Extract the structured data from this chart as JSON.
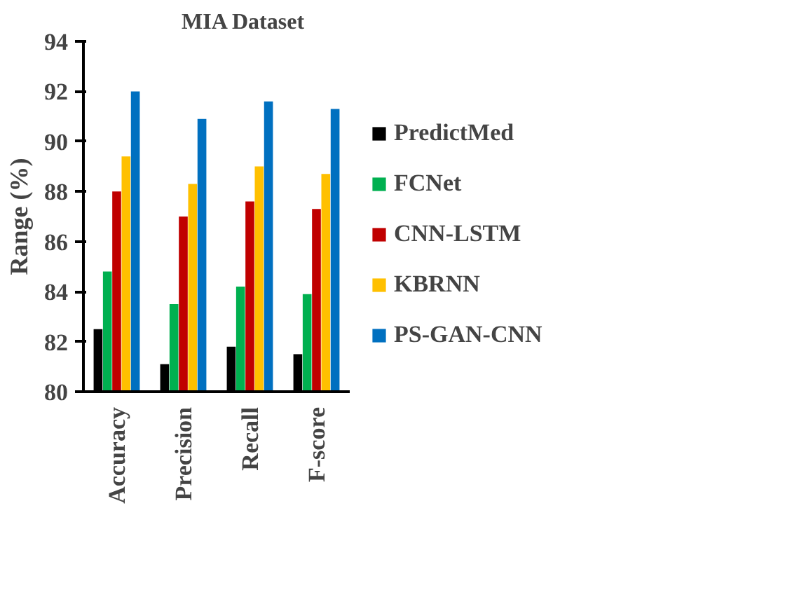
{
  "chart_data": {
    "type": "bar",
    "title": "MIA Dataset",
    "ylabel": "Range (%)",
    "categories": [
      "Accuracy",
      "Precision",
      "Recall",
      "F-score"
    ],
    "series": [
      {
        "name": "PredictMed",
        "color": "#000000",
        "values": [
          82.5,
          81.1,
          81.8,
          81.5
        ]
      },
      {
        "name": "FCNet",
        "color": "#00b050",
        "values": [
          84.8,
          83.5,
          84.2,
          83.9
        ]
      },
      {
        "name": "CNN-LSTM",
        "color": "#c00000",
        "values": [
          88.0,
          87.0,
          87.6,
          87.3
        ]
      },
      {
        "name": "KBRNN",
        "color": "#ffc000",
        "values": [
          89.4,
          88.3,
          89.0,
          88.7
        ]
      },
      {
        "name": "PS-GAN-CNN",
        "color": "#0070c0",
        "values": [
          92.0,
          90.9,
          91.6,
          91.3
        ]
      }
    ],
    "ylim": [
      80,
      94
    ],
    "yticks": [
      80,
      82,
      84,
      86,
      88,
      90,
      92,
      94
    ],
    "grid": false,
    "legend": "right"
  }
}
